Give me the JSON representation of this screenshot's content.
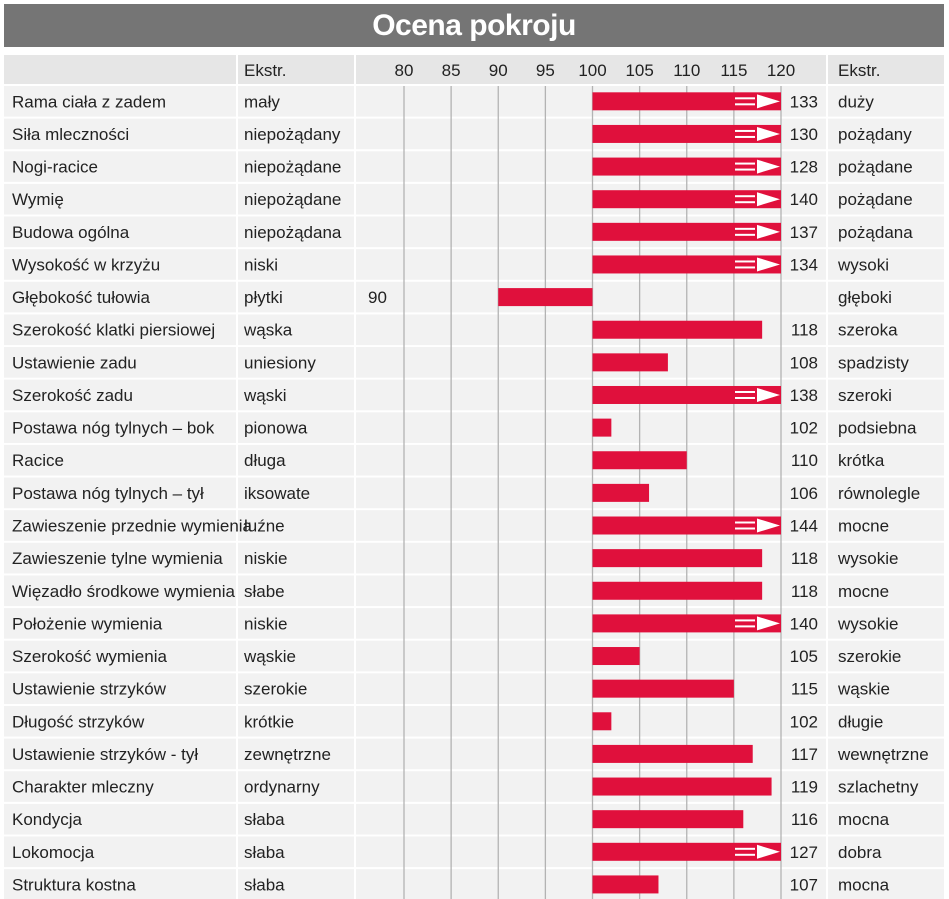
{
  "title": "Ocena pokroju",
  "chart_data": {
    "type": "bar",
    "title": "Ocena pokroju",
    "baseline": 100,
    "xlim": [
      75,
      121
    ],
    "x_ticks": [
      "80",
      "85",
      "90",
      "95",
      "100",
      "105",
      "110",
      "115",
      "120"
    ],
    "header": {
      "left_extreme": "Ekstr.",
      "right_extreme": "Ekstr."
    },
    "bar_color": "#e0103c",
    "rows": [
      {
        "trait": "Rama ciała z zadem",
        "low": "mały",
        "value": 133,
        "label": "133",
        "high": "duży"
      },
      {
        "trait": "Siła mleczności",
        "low": "niepożądany",
        "value": 130,
        "label": "130",
        "high": "pożądany"
      },
      {
        "trait": "Nogi-racice",
        "low": "niepożądane",
        "value": 128,
        "label": "128",
        "high": "pożądane"
      },
      {
        "trait": "Wymię",
        "low": "niepożądane",
        "value": 140,
        "label": "140",
        "high": "pożądane"
      },
      {
        "trait": "Budowa ogólna",
        "low": "niepożądana",
        "value": 137,
        "label": "137",
        "high": "pożądana"
      },
      {
        "trait": "Wysokość w krzyżu",
        "low": "niski",
        "value": 134,
        "label": "134",
        "high": "wysoki"
      },
      {
        "trait": "Głębokość tułowia",
        "low": "płytki",
        "value": 90,
        "label": "90",
        "high": "głęboki"
      },
      {
        "trait": "Szerokość klatki piersiowej",
        "low": "wąska",
        "value": 118,
        "label": "118",
        "high": "szeroka"
      },
      {
        "trait": "Ustawienie zadu",
        "low": "uniesiony",
        "value": 108,
        "label": "108",
        "high": "spadzisty"
      },
      {
        "trait": "Szerokość zadu",
        "low": "wąski",
        "value": 138,
        "label": "138",
        "high": "szeroki"
      },
      {
        "trait": "Postawa nóg tylnych –  bok",
        "low": "pionowa",
        "value": 102,
        "label": "102",
        "high": "podsiebna"
      },
      {
        "trait": "Racice",
        "low": "długa",
        "value": 110,
        "label": "110",
        "high": "krótka"
      },
      {
        "trait": "Postawa nóg tylnych –  tył",
        "low": "iksowate",
        "value": 106,
        "label": "106",
        "high": "równolegle"
      },
      {
        "trait": "Zawieszenie przednie wymienia",
        "low": "luźne",
        "value": 144,
        "label": "144",
        "high": "mocne"
      },
      {
        "trait": "Zawieszenie tylne wymienia",
        "low": "niskie",
        "value": 118,
        "label": "118",
        "high": "wysokie"
      },
      {
        "trait": "Więzadło środkowe wymienia",
        "low": "słabe",
        "value": 118,
        "label": "118",
        "high": "mocne"
      },
      {
        "trait": "Położenie wymienia",
        "low": "niskie",
        "value": 140,
        "label": "140",
        "high": "wysokie"
      },
      {
        "trait": "Szerokość wymienia",
        "low": "wąskie",
        "value": 105,
        "label": "105",
        "high": "szerokie"
      },
      {
        "trait": "Ustawienie strzyków",
        "low": "szerokie",
        "value": 115,
        "label": "115",
        "high": "wąskie"
      },
      {
        "trait": "Długość strzyków",
        "low": "krótkie",
        "value": 102,
        "label": "102",
        "high": "długie"
      },
      {
        "trait": "Ustawienie strzyków - tył",
        "low": "zewnętrzne",
        "value": 117,
        "label": "117",
        "high": "wewnętrzne"
      },
      {
        "trait": "Charakter mleczny",
        "low": "ordynarny",
        "value": 119,
        "label": "119",
        "high": "szlachetny"
      },
      {
        "trait": "Kondycja",
        "low": "słaba",
        "value": 116,
        "label": "116",
        "high": "mocna"
      },
      {
        "trait": "Lokomocja",
        "low": "słaba",
        "value": 127,
        "label": "127",
        "high": "dobra"
      },
      {
        "trait": "Struktura kostna",
        "low": "słaba",
        "value": 107,
        "label": "107",
        "high": "mocna"
      }
    ]
  }
}
